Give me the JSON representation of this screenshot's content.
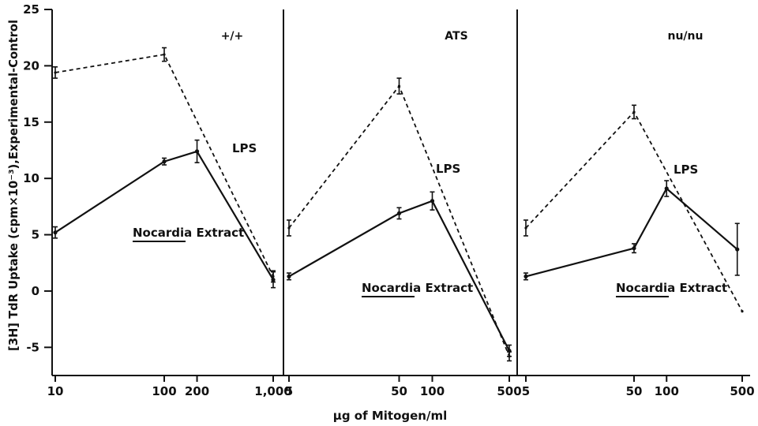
{
  "chart_data": {
    "type": "line",
    "ylabel": "[3H] TdR Uptake (cpm×10⁻³),Experimental-Control",
    "xlabel": "µg of Mitogen/ml",
    "ylim": [
      -7.5,
      25
    ],
    "yticks": [
      -5,
      0,
      5,
      10,
      15,
      20,
      25
    ],
    "ytick_labels": [
      "-5",
      "0",
      "5",
      "10",
      "15",
      "20",
      "25"
    ],
    "x_scale": "log",
    "grid": false,
    "panels": [
      {
        "label": "+/+",
        "xlim": [
          10,
          1000
        ],
        "xticks": [
          10,
          100,
          200,
          1000
        ],
        "xtick_labels": [
          "10",
          "100",
          "200",
          "1,000"
        ],
        "series": [
          {
            "name": "LPS",
            "style": "dashed",
            "x": [
              10,
              100,
              1000
            ],
            "y": [
              19.4,
              21.0,
              1.3
            ],
            "err": [
              0.5,
              0.6,
              0.5
            ]
          },
          {
            "name": "Nocardia Extract",
            "style": "solid",
            "x": [
              10,
              100,
              200,
              1000
            ],
            "y": [
              5.2,
              11.5,
              12.4,
              1.0
            ],
            "err": [
              0.5,
              0.3,
              1.0,
              0.7
            ]
          }
        ]
      },
      {
        "label": "ATS",
        "xlim": [
          5,
          500
        ],
        "xticks": [
          5,
          50,
          100,
          500
        ],
        "xtick_labels": [
          "5",
          "50",
          "100",
          "500"
        ],
        "series": [
          {
            "name": "LPS",
            "style": "dashed",
            "x": [
              5,
              50,
              500
            ],
            "y": [
              5.6,
              18.2,
              -5.8
            ],
            "err": [
              0.7,
              0.7,
              0.4
            ]
          },
          {
            "name": "Nocardia Extract",
            "style": "solid",
            "x": [
              5,
              50,
              100,
              500
            ],
            "y": [
              1.3,
              6.9,
              8.0,
              -5.3
            ],
            "err": [
              0.3,
              0.5,
              0.8,
              0.5
            ]
          }
        ]
      },
      {
        "label": "nu/nu",
        "xlim": [
          5,
          500
        ],
        "xticks": [
          5,
          50,
          100,
          500
        ],
        "xtick_labels": [
          "5",
          "50",
          "100",
          "500"
        ],
        "series": [
          {
            "name": "LPS",
            "style": "dashed",
            "x": [
              5,
              50,
              500
            ],
            "y": [
              5.6,
              15.9,
              -1.8
            ],
            "err": [
              0.7,
              0.6,
              0
            ]
          },
          {
            "name": "Nocardia Extract",
            "style": "solid",
            "x": [
              5,
              50,
              100,
              450
            ],
            "y": [
              1.3,
              3.8,
              9.1,
              3.7
            ],
            "err": [
              0.3,
              0.4,
              0.7,
              2.3
            ]
          }
        ]
      }
    ]
  }
}
